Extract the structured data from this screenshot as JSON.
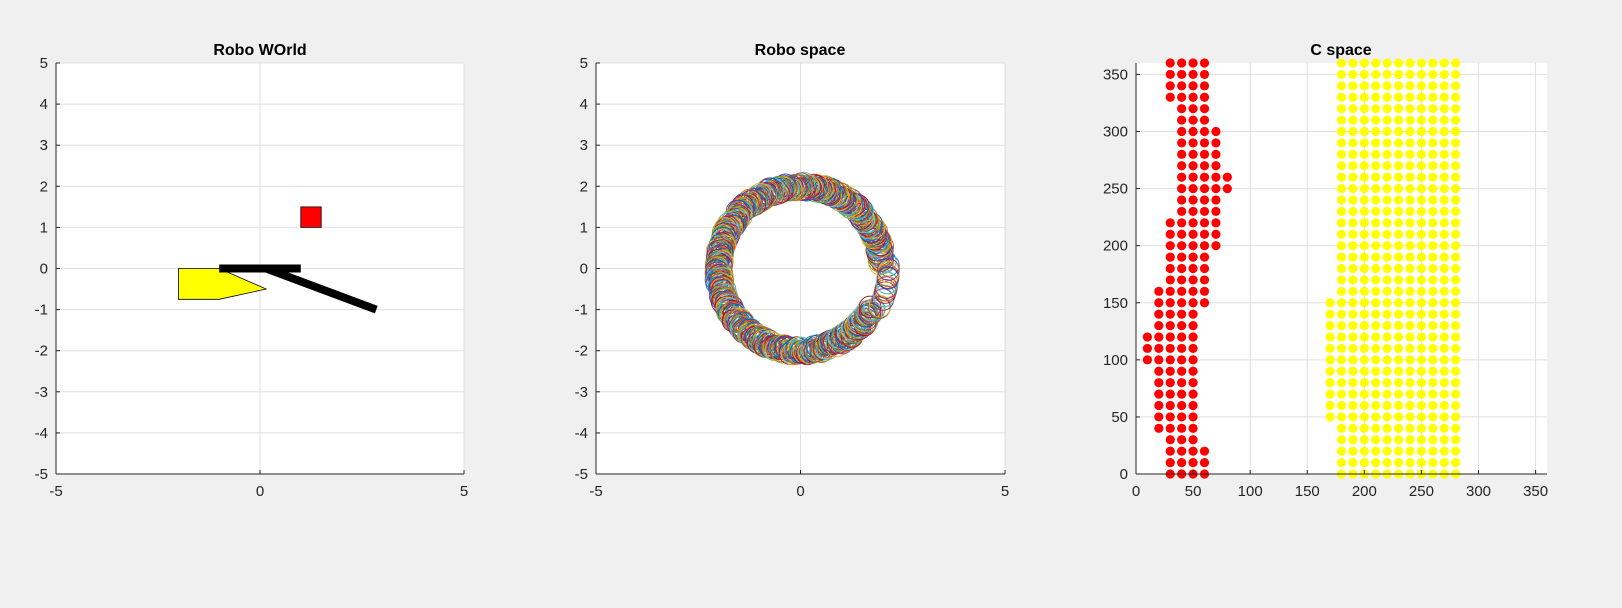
{
  "chart_data": [
    {
      "type": "patch",
      "title": "Robo WOrld",
      "xlim": [
        -5,
        5
      ],
      "ylim": [
        -5,
        5
      ],
      "xticks": [
        "-5",
        "0",
        "5"
      ],
      "yticks": [
        "5",
        "4",
        "3",
        "2",
        "1",
        "0",
        "-1",
        "-2",
        "-3",
        "-4",
        "-5"
      ],
      "grid": true,
      "obstacles": [
        {
          "shape": "square",
          "color": "#ff0000",
          "polygon": [
            [
              1.0,
              1.0
            ],
            [
              1.5,
              1.0
            ],
            [
              1.5,
              1.5
            ],
            [
              1.0,
              1.5
            ]
          ]
        },
        {
          "shape": "pentagon",
          "color": "#ffff00",
          "polygon": [
            [
              -2.0,
              0.0
            ],
            [
              -1.0,
              0.0
            ],
            [
              0.15,
              -0.5
            ],
            [
              -1.0,
              -0.75
            ],
            [
              -2.0,
              -0.75
            ]
          ]
        }
      ],
      "robot_links": [
        {
          "from": [
            -1.0,
            0.0
          ],
          "to": [
            1.0,
            0.0
          ]
        },
        {
          "from": [
            0.15,
            0.0
          ],
          "to": [
            2.85,
            -1.0
          ]
        }
      ]
    },
    {
      "type": "scatter",
      "title": "Robo space",
      "xlim": [
        -5,
        5
      ],
      "ylim": [
        -5,
        5
      ],
      "xticks": [
        "-5",
        "0",
        "5"
      ],
      "yticks": [
        "5",
        "4",
        "3",
        "2",
        "1",
        "0",
        "-1",
        "-2",
        "-3",
        "-4",
        "-5"
      ],
      "grid": true,
      "marker": "circle",
      "annulus_inner_radius": 1.45,
      "annulus_outer_radius": 2.55,
      "gap_angle_deg": [
        -30,
        0
      ],
      "colors": [
        "#0072bd",
        "#d95319",
        "#edb120",
        "#7e2f8e",
        "#77ac30",
        "#4dbeee",
        "#a2142f"
      ]
    },
    {
      "type": "scatter",
      "title": "C space",
      "xlim": [
        0,
        360
      ],
      "ylim": [
        0,
        360
      ],
      "xticks": [
        "0",
        "50",
        "100",
        "150",
        "200",
        "250",
        "300",
        "350"
      ],
      "yticks": [
        "350",
        "300",
        "250",
        "200",
        "150",
        "100",
        "50",
        "0"
      ],
      "grid": true,
      "step": 10,
      "series": [
        {
          "color": "#ff0000",
          "rows": [
            [
              0,
              30,
              60
            ],
            [
              10,
              30,
              60
            ],
            [
              20,
              30,
              60
            ],
            [
              30,
              30,
              50
            ],
            [
              40,
              20,
              50
            ],
            [
              50,
              20,
              50
            ],
            [
              60,
              20,
              50
            ],
            [
              70,
              20,
              50
            ],
            [
              80,
              20,
              50
            ],
            [
              90,
              20,
              50
            ],
            [
              100,
              10,
              50
            ],
            [
              110,
              10,
              50
            ],
            [
              120,
              10,
              50
            ],
            [
              130,
              20,
              50
            ],
            [
              140,
              20,
              50
            ],
            [
              150,
              20,
              60
            ],
            [
              160,
              20,
              60
            ],
            [
              170,
              30,
              60
            ],
            [
              180,
              30,
              60
            ],
            [
              190,
              30,
              60
            ],
            [
              200,
              30,
              70
            ],
            [
              210,
              30,
              70
            ],
            [
              220,
              30,
              70
            ],
            [
              230,
              40,
              70
            ],
            [
              240,
              40,
              70
            ],
            [
              250,
              40,
              80
            ],
            [
              260,
              40,
              80
            ],
            [
              270,
              40,
              70
            ],
            [
              280,
              40,
              70
            ],
            [
              290,
              40,
              70
            ],
            [
              300,
              40,
              70
            ],
            [
              310,
              40,
              60
            ],
            [
              320,
              40,
              60
            ],
            [
              330,
              30,
              60
            ],
            [
              340,
              30,
              60
            ],
            [
              350,
              30,
              60
            ],
            [
              360,
              30,
              60
            ]
          ]
        },
        {
          "color": "#ffff00",
          "rows": [
            [
              0,
              180,
              280
            ],
            [
              10,
              180,
              280
            ],
            [
              20,
              180,
              280
            ],
            [
              30,
              180,
              280
            ],
            [
              40,
              180,
              280
            ],
            [
              50,
              170,
              280
            ],
            [
              60,
              170,
              280
            ],
            [
              70,
              170,
              280
            ],
            [
              80,
              170,
              280
            ],
            [
              90,
              170,
              280
            ],
            [
              100,
              170,
              280
            ],
            [
              110,
              170,
              280
            ],
            [
              120,
              170,
              280
            ],
            [
              130,
              170,
              280
            ],
            [
              140,
              170,
              280
            ],
            [
              150,
              170,
              280
            ],
            [
              160,
              180,
              280
            ],
            [
              170,
              180,
              280
            ],
            [
              180,
              180,
              280
            ],
            [
              190,
              180,
              280
            ],
            [
              200,
              180,
              280
            ],
            [
              210,
              180,
              280
            ],
            [
              220,
              180,
              280
            ],
            [
              230,
              180,
              280
            ],
            [
              240,
              180,
              280
            ],
            [
              250,
              180,
              280
            ],
            [
              260,
              180,
              280
            ],
            [
              270,
              180,
              280
            ],
            [
              280,
              180,
              280
            ],
            [
              290,
              180,
              280
            ],
            [
              300,
              180,
              280
            ],
            [
              310,
              180,
              280
            ],
            [
              320,
              180,
              280
            ],
            [
              330,
              180,
              280
            ],
            [
              340,
              180,
              280
            ],
            [
              350,
              180,
              280
            ],
            [
              360,
              180,
              280
            ]
          ]
        }
      ]
    }
  ]
}
